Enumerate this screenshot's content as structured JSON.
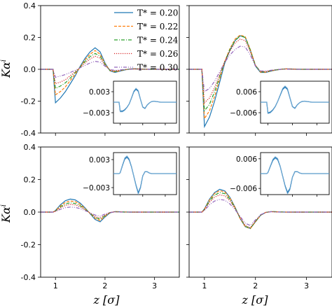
{
  "figure": {
    "ylabel": "Kα",
    "ylabel_superscript": "i",
    "xlabel": "z [σ]"
  },
  "legend": {
    "placement": "top-right of top-left panel",
    "entries": [
      "T* = 0.20",
      "T* = 0.22",
      "T* = 0.24",
      "T* = 0.26",
      "T* = 0.30"
    ]
  },
  "chart_data": {
    "type": "line",
    "layout": "2x2 panels, shared axes",
    "xlim": [
      0.7,
      3.5
    ],
    "ylim": [
      -0.4,
      0.4
    ],
    "xticks": [
      1,
      2,
      3
    ],
    "yticks": [
      -0.4,
      -0.2,
      0.0,
      0.2,
      0.4
    ],
    "series_styles": [
      {
        "name": "T* = 0.20",
        "color": "#1f77b4",
        "dash": "solid"
      },
      {
        "name": "T* = 0.22",
        "color": "#ff7f0e",
        "dash": "dashed"
      },
      {
        "name": "T* = 0.24",
        "color": "#2ca02c",
        "dash": "dashdot"
      },
      {
        "name": "T* = 0.26",
        "color": "#d62728",
        "dash": "dotted"
      },
      {
        "name": "T* = 0.30",
        "color": "#9467bd",
        "dash": "dashdotdot"
      }
    ],
    "x": [
      0.7,
      0.9,
      0.95,
      1.0,
      1.1,
      1.2,
      1.3,
      1.4,
      1.5,
      1.6,
      1.7,
      1.8,
      1.9,
      2.0,
      2.1,
      2.2,
      2.3,
      2.4,
      2.5,
      2.6,
      2.7,
      2.8,
      2.9,
      3.0,
      3.2,
      3.5
    ],
    "panels": [
      {
        "position": "top-left",
        "series": [
          {
            "name": "T* = 0.20",
            "values": [
              0,
              0,
              0,
              -0.21,
              -0.18,
              -0.14,
              -0.09,
              -0.04,
              0.02,
              0.07,
              0.11,
              0.135,
              0.11,
              0.04,
              -0.01,
              -0.02,
              -0.012,
              -0.004,
              0.002,
              0.004,
              0.002,
              0.001,
              0,
              0,
              0,
              0
            ]
          },
          {
            "name": "T* = 0.22",
            "values": [
              0,
              0,
              0,
              -0.16,
              -0.14,
              -0.11,
              -0.07,
              -0.03,
              0.015,
              0.06,
              0.095,
              0.118,
              0.095,
              0.035,
              -0.008,
              -0.016,
              -0.01,
              -0.003,
              0.002,
              0.003,
              0.002,
              0.001,
              0,
              0,
              0,
              0
            ]
          },
          {
            "name": "T* = 0.24",
            "values": [
              0,
              0,
              0,
              -0.12,
              -0.105,
              -0.085,
              -0.055,
              -0.02,
              0.015,
              0.05,
              0.08,
              0.1,
              0.082,
              0.03,
              -0.006,
              -0.013,
              -0.008,
              -0.002,
              0.001,
              0.002,
              0.001,
              0,
              0,
              0,
              0,
              0
            ]
          },
          {
            "name": "T* = 0.26",
            "values": [
              0,
              0,
              0,
              -0.09,
              -0.08,
              -0.065,
              -0.04,
              -0.015,
              0.012,
              0.04,
              0.065,
              0.082,
              0.07,
              0.025,
              -0.005,
              -0.01,
              -0.006,
              -0.002,
              0.001,
              0.002,
              0.001,
              0,
              0,
              0,
              0,
              0
            ]
          },
          {
            "name": "T* = 0.30",
            "values": [
              0,
              0,
              0,
              -0.05,
              -0.042,
              -0.033,
              -0.02,
              -0.006,
              0.01,
              0.025,
              0.04,
              0.05,
              0.045,
              0.02,
              -0.002,
              -0.006,
              -0.004,
              -0.001,
              0,
              0.001,
              0,
              0,
              0,
              0,
              0,
              0
            ]
          }
        ],
        "inset": {
          "ylim": [
            -0.006,
            0.006
          ],
          "yticks": [
            0.003,
            -0.003
          ],
          "values": [
            -0.0,
            -0.0,
            -0.0,
            -0.0026,
            -0.0026,
            -0.0022,
            -0.0015,
            -0.0005,
            0.0012,
            0.003,
            0.0038,
            0.0032,
            0.0008,
            -0.0014,
            -0.0018,
            -0.0008,
            -0.0002,
            0.0002,
            0.0003,
            0.0002,
            0.0001,
            0,
            0,
            0,
            0,
            0
          ]
        }
      },
      {
        "position": "top-right",
        "series": [
          {
            "name": "T* = 0.20",
            "values": [
              0,
              0,
              0,
              -0.36,
              -0.3,
              -0.2,
              -0.08,
              0.04,
              0.12,
              0.18,
              0.21,
              0.2,
              0.12,
              0.02,
              -0.02,
              -0.02,
              -0.012,
              -0.005,
              0,
              0.003,
              0.002,
              0.001,
              0,
              0,
              0,
              0
            ]
          },
          {
            "name": "T* = 0.22",
            "values": [
              0,
              0,
              0,
              -0.31,
              -0.26,
              -0.17,
              -0.06,
              0.05,
              0.13,
              0.19,
              0.215,
              0.205,
              0.125,
              0.025,
              -0.018,
              -0.018,
              -0.01,
              -0.004,
              0,
              0.003,
              0.002,
              0.001,
              0,
              0,
              0,
              0
            ]
          },
          {
            "name": "T* = 0.24",
            "values": [
              0,
              0,
              0,
              -0.26,
              -0.22,
              -0.14,
              -0.045,
              0.05,
              0.125,
              0.18,
              0.21,
              0.2,
              0.12,
              0.025,
              -0.016,
              -0.016,
              -0.009,
              -0.003,
              0,
              0.002,
              0.001,
              0,
              0,
              0,
              0,
              0
            ]
          },
          {
            "name": "T* = 0.26",
            "values": [
              0,
              0,
              0,
              -0.21,
              -0.18,
              -0.115,
              -0.03,
              0.05,
              0.115,
              0.165,
              0.19,
              0.18,
              0.11,
              0.025,
              -0.014,
              -0.014,
              -0.008,
              -0.003,
              0,
              0.002,
              0.001,
              0,
              0,
              0,
              0,
              0
            ]
          },
          {
            "name": "T* = 0.30",
            "values": [
              0,
              0,
              0,
              -0.14,
              -0.12,
              -0.075,
              -0.015,
              0.045,
              0.09,
              0.125,
              0.145,
              0.14,
              0.09,
              0.02,
              -0.01,
              -0.01,
              -0.006,
              -0.002,
              0,
              0.001,
              0,
              0,
              0,
              0,
              0,
              0
            ]
          }
        ],
        "inset": {
          "ylim": [
            -0.012,
            0.012
          ],
          "yticks": [
            0.006,
            -0.006
          ],
          "values": [
            0,
            0,
            0,
            -0.0062,
            -0.0058,
            -0.0045,
            -0.0025,
            0.0005,
            0.004,
            0.0075,
            0.0088,
            0.0075,
            0.0025,
            -0.0025,
            -0.0035,
            -0.0015,
            -0.0002,
            0.0005,
            0.0006,
            0.0004,
            0.0002,
            0,
            0,
            0,
            0,
            0
          ]
        }
      },
      {
        "position": "bottom-left",
        "series": [
          {
            "name": "T* = 0.20",
            "values": [
              0,
              0,
              0,
              0.01,
              0.045,
              0.07,
              0.08,
              0.075,
              0.055,
              0.025,
              -0.01,
              -0.045,
              -0.06,
              -0.03,
              -0.005,
              0.003,
              0.002,
              0.001,
              0,
              0,
              0,
              0,
              0,
              0,
              0,
              0
            ]
          },
          {
            "name": "T* = 0.22",
            "values": [
              0,
              0,
              0,
              0.008,
              0.038,
              0.06,
              0.068,
              0.064,
              0.047,
              0.021,
              -0.008,
              -0.038,
              -0.052,
              -0.026,
              -0.004,
              0.003,
              0.002,
              0.001,
              0,
              0,
              0,
              0,
              0,
              0,
              0,
              0
            ]
          },
          {
            "name": "T* = 0.24",
            "values": [
              0,
              0,
              0,
              0.007,
              0.032,
              0.05,
              0.057,
              0.053,
              0.039,
              0.017,
              -0.007,
              -0.032,
              -0.044,
              -0.022,
              -0.003,
              0.002,
              0.001,
              0,
              0,
              0,
              0,
              0,
              0,
              0,
              0,
              0
            ]
          },
          {
            "name": "T* = 0.26",
            "values": [
              0,
              0,
              0,
              0.006,
              0.026,
              0.041,
              0.047,
              0.044,
              0.032,
              0.014,
              -0.006,
              -0.027,
              -0.037,
              -0.018,
              -0.003,
              0.002,
              0.001,
              0,
              0,
              0,
              0,
              0,
              0,
              0,
              0,
              0
            ]
          },
          {
            "name": "T* = 0.30",
            "values": [
              0,
              0,
              0,
              0.004,
              0.017,
              0.027,
              0.031,
              0.029,
              0.021,
              0.009,
              -0.004,
              -0.018,
              -0.025,
              -0.012,
              -0.002,
              0.001,
              0,
              0,
              0,
              0,
              0,
              0,
              0,
              0,
              0,
              0
            ]
          }
        ],
        "inset": {
          "ylim": [
            -0.0045,
            0.0045
          ],
          "yticks": [
            0.003,
            -0.003
          ],
          "values": [
            0,
            0,
            0,
            0.0002,
            0.0018,
            0.0032,
            0.0036,
            0.003,
            0.0015,
            -0.0005,
            -0.0025,
            -0.0042,
            -0.003,
            -0.0005,
            0.0004,
            0.0004,
            0.0001,
            0,
            0,
            0,
            0,
            0,
            0,
            0,
            0,
            0
          ]
        }
      },
      {
        "position": "bottom-right",
        "series": [
          {
            "name": "T* = 0.20",
            "values": [
              0,
              0,
              0,
              0.02,
              0.08,
              0.12,
              0.14,
              0.13,
              0.09,
              0.03,
              -0.04,
              -0.09,
              -0.1,
              -0.06,
              -0.02,
              -0.002,
              0.003,
              0.002,
              0.001,
              0,
              0,
              0,
              0,
              0,
              0,
              0
            ]
          },
          {
            "name": "T* = 0.22",
            "values": [
              0,
              0,
              0,
              0.018,
              0.075,
              0.115,
              0.132,
              0.124,
              0.086,
              0.028,
              -0.04,
              -0.09,
              -0.102,
              -0.06,
              -0.02,
              -0.002,
              0.003,
              0.002,
              0.001,
              0,
              0,
              0,
              0,
              0,
              0,
              0
            ]
          },
          {
            "name": "T* = 0.24",
            "values": [
              0,
              0,
              0,
              0.016,
              0.068,
              0.104,
              0.12,
              0.113,
              0.078,
              0.025,
              -0.037,
              -0.087,
              -0.1,
              -0.058,
              -0.019,
              -0.002,
              0.003,
              0.002,
              0.001,
              0,
              0,
              0,
              0,
              0,
              0,
              0
            ]
          },
          {
            "name": "T* = 0.26",
            "values": [
              0,
              0,
              0,
              0.014,
              0.06,
              0.092,
              0.106,
              0.1,
              0.069,
              0.022,
              -0.034,
              -0.082,
              -0.096,
              -0.055,
              -0.018,
              -0.002,
              0.002,
              0.001,
              0,
              0,
              0,
              0,
              0,
              0,
              0,
              0
            ]
          },
          {
            "name": "T* = 0.30",
            "values": [
              0,
              0,
              0,
              0.01,
              0.045,
              0.068,
              0.078,
              0.073,
              0.05,
              0.015,
              -0.027,
              -0.068,
              -0.082,
              -0.048,
              -0.016,
              -0.002,
              0.002,
              0.001,
              0,
              0,
              0,
              0,
              0,
              0,
              0,
              0
            ]
          }
        ],
        "inset": {
          "ylim": [
            -0.0085,
            0.0085
          ],
          "yticks": [
            0.006,
            -0.006
          ],
          "values": [
            0,
            0,
            0,
            0.0004,
            0.003,
            0.0055,
            0.0065,
            0.0058,
            0.003,
            -0.001,
            -0.005,
            -0.0078,
            -0.0062,
            -0.0015,
            0.0008,
            0.0008,
            0.0002,
            0,
            0,
            0,
            0,
            0,
            0,
            0,
            0,
            0
          ]
        }
      }
    ]
  }
}
